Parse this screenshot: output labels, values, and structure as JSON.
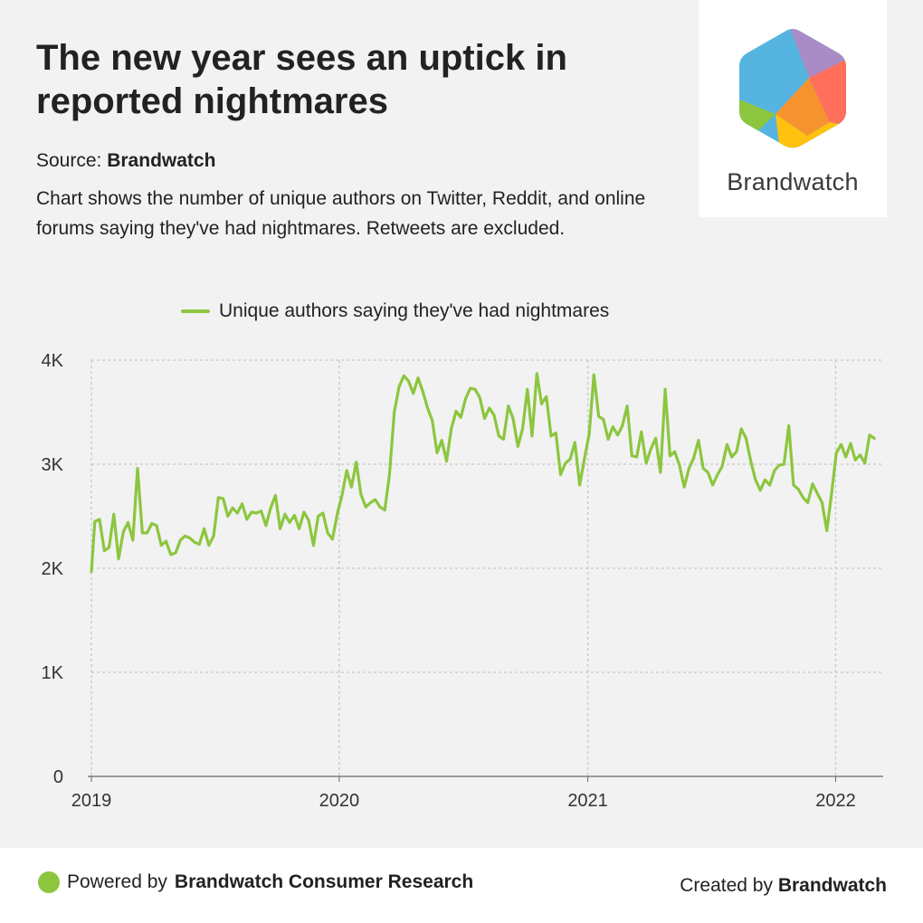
{
  "header": {
    "title": "The new year sees an uptick in reported nightmares",
    "source_prefix": "Source:",
    "source_name": "Brandwatch",
    "description": "Chart shows the number of unique authors on Twitter, Reddit, and online forums saying they've had nightmares. Retweets are excluded."
  },
  "logo": {
    "wordmark": "Brandwatch",
    "colors": [
      "#56b4e0",
      "#a98cc6",
      "#ff6f5b",
      "#f7932f",
      "#ffc20e",
      "#8cc63f"
    ]
  },
  "footer": {
    "powered_prefix": "Powered by",
    "powered_name": "Brandwatch Consumer Research",
    "created_prefix": "Created by",
    "created_name": "Brandwatch"
  },
  "colors": {
    "series": "#8cc63f",
    "grid": "#c8c8c8",
    "axis": "#666666"
  },
  "chart_data": {
    "type": "line",
    "title": "",
    "xlabel": "",
    "ylabel": "",
    "x_ticks": [
      "2019",
      "2020",
      "2021",
      "2022"
    ],
    "y_ticks": [
      "0",
      "1K",
      "2K",
      "3K",
      "4K"
    ],
    "ylim": [
      0,
      4000
    ],
    "xlim": [
      "2019-01-01",
      "2022-03-12"
    ],
    "grid": true,
    "legend": "top-center",
    "series": [
      {
        "name": "Unique authors saying they've had nightmares",
        "color": "#8cc63f",
        "points": [
          [
            "2019-01-01",
            1970
          ],
          [
            "2019-01-06",
            2450
          ],
          [
            "2019-01-13",
            2470
          ],
          [
            "2019-01-20",
            2170
          ],
          [
            "2019-01-27",
            2200
          ],
          [
            "2019-02-03",
            2520
          ],
          [
            "2019-02-10",
            2090
          ],
          [
            "2019-02-17",
            2350
          ],
          [
            "2019-02-24",
            2440
          ],
          [
            "2019-03-03",
            2270
          ],
          [
            "2019-03-10",
            2960
          ],
          [
            "2019-03-17",
            2340
          ],
          [
            "2019-03-24",
            2340
          ],
          [
            "2019-03-31",
            2430
          ],
          [
            "2019-04-07",
            2410
          ],
          [
            "2019-04-14",
            2220
          ],
          [
            "2019-04-21",
            2260
          ],
          [
            "2019-04-28",
            2130
          ],
          [
            "2019-05-05",
            2150
          ],
          [
            "2019-05-12",
            2270
          ],
          [
            "2019-05-19",
            2310
          ],
          [
            "2019-05-26",
            2290
          ],
          [
            "2019-06-02",
            2250
          ],
          [
            "2019-06-09",
            2230
          ],
          [
            "2019-06-16",
            2380
          ],
          [
            "2019-06-23",
            2220
          ],
          [
            "2019-06-30",
            2310
          ],
          [
            "2019-07-07",
            2680
          ],
          [
            "2019-07-14",
            2670
          ],
          [
            "2019-07-21",
            2500
          ],
          [
            "2019-07-28",
            2580
          ],
          [
            "2019-08-04",
            2530
          ],
          [
            "2019-08-11",
            2620
          ],
          [
            "2019-08-18",
            2470
          ],
          [
            "2019-08-25",
            2540
          ],
          [
            "2019-09-01",
            2530
          ],
          [
            "2019-09-08",
            2550
          ],
          [
            "2019-09-15",
            2410
          ],
          [
            "2019-09-22",
            2580
          ],
          [
            "2019-09-29",
            2700
          ],
          [
            "2019-10-06",
            2380
          ],
          [
            "2019-10-13",
            2520
          ],
          [
            "2019-10-20",
            2440
          ],
          [
            "2019-10-27",
            2510
          ],
          [
            "2019-11-03",
            2380
          ],
          [
            "2019-11-10",
            2540
          ],
          [
            "2019-11-17",
            2460
          ],
          [
            "2019-11-24",
            2220
          ],
          [
            "2019-12-01",
            2500
          ],
          [
            "2019-12-08",
            2530
          ],
          [
            "2019-12-15",
            2340
          ],
          [
            "2019-12-22",
            2280
          ],
          [
            "2019-12-29",
            2520
          ],
          [
            "2020-01-05",
            2700
          ],
          [
            "2020-01-12",
            2940
          ],
          [
            "2020-01-19",
            2780
          ],
          [
            "2020-01-26",
            3020
          ],
          [
            "2020-02-02",
            2710
          ],
          [
            "2020-02-09",
            2590
          ],
          [
            "2020-02-16",
            2630
          ],
          [
            "2020-02-23",
            2660
          ],
          [
            "2020-03-01",
            2590
          ],
          [
            "2020-03-08",
            2560
          ],
          [
            "2020-03-15",
            2900
          ],
          [
            "2020-03-22",
            3500
          ],
          [
            "2020-03-29",
            3740
          ],
          [
            "2020-04-05",
            3850
          ],
          [
            "2020-04-12",
            3800
          ],
          [
            "2020-04-19",
            3680
          ],
          [
            "2020-04-26",
            3830
          ],
          [
            "2020-05-03",
            3700
          ],
          [
            "2020-05-10",
            3540
          ],
          [
            "2020-05-17",
            3420
          ],
          [
            "2020-05-24",
            3110
          ],
          [
            "2020-05-31",
            3230
          ],
          [
            "2020-06-07",
            3030
          ],
          [
            "2020-06-14",
            3340
          ],
          [
            "2020-06-21",
            3510
          ],
          [
            "2020-06-28",
            3450
          ],
          [
            "2020-07-05",
            3630
          ],
          [
            "2020-07-12",
            3730
          ],
          [
            "2020-07-19",
            3720
          ],
          [
            "2020-07-26",
            3640
          ],
          [
            "2020-08-02",
            3440
          ],
          [
            "2020-08-09",
            3540
          ],
          [
            "2020-08-16",
            3470
          ],
          [
            "2020-08-23",
            3270
          ],
          [
            "2020-08-30",
            3240
          ],
          [
            "2020-09-06",
            3560
          ],
          [
            "2020-09-13",
            3440
          ],
          [
            "2020-09-20",
            3170
          ],
          [
            "2020-09-27",
            3340
          ],
          [
            "2020-10-04",
            3720
          ],
          [
            "2020-10-11",
            3270
          ],
          [
            "2020-10-18",
            3870
          ],
          [
            "2020-10-25",
            3580
          ],
          [
            "2020-11-01",
            3650
          ],
          [
            "2020-11-08",
            3270
          ],
          [
            "2020-11-15",
            3300
          ],
          [
            "2020-11-22",
            2900
          ],
          [
            "2020-11-29",
            3010
          ],
          [
            "2020-12-06",
            3050
          ],
          [
            "2020-12-13",
            3210
          ],
          [
            "2020-12-20",
            2800
          ],
          [
            "2020-12-27",
            3050
          ],
          [
            "2021-01-03",
            3290
          ],
          [
            "2021-01-10",
            3860
          ],
          [
            "2021-01-17",
            3460
          ],
          [
            "2021-01-24",
            3430
          ],
          [
            "2021-01-31",
            3240
          ],
          [
            "2021-02-07",
            3360
          ],
          [
            "2021-02-14",
            3280
          ],
          [
            "2021-02-21",
            3370
          ],
          [
            "2021-02-28",
            3560
          ],
          [
            "2021-03-07",
            3080
          ],
          [
            "2021-03-14",
            3070
          ],
          [
            "2021-03-21",
            3310
          ],
          [
            "2021-03-28",
            3010
          ],
          [
            "2021-04-04",
            3150
          ],
          [
            "2021-04-11",
            3250
          ],
          [
            "2021-04-18",
            2920
          ],
          [
            "2021-04-25",
            3720
          ],
          [
            "2021-05-02",
            3080
          ],
          [
            "2021-05-09",
            3120
          ],
          [
            "2021-05-16",
            2990
          ],
          [
            "2021-05-23",
            2780
          ],
          [
            "2021-05-30",
            2960
          ],
          [
            "2021-06-06",
            3060
          ],
          [
            "2021-06-13",
            3230
          ],
          [
            "2021-06-20",
            2960
          ],
          [
            "2021-06-27",
            2920
          ],
          [
            "2021-07-04",
            2800
          ],
          [
            "2021-07-11",
            2900
          ],
          [
            "2021-07-18",
            2980
          ],
          [
            "2021-07-25",
            3190
          ],
          [
            "2021-08-01",
            3070
          ],
          [
            "2021-08-08",
            3120
          ],
          [
            "2021-08-15",
            3340
          ],
          [
            "2021-08-22",
            3250
          ],
          [
            "2021-08-29",
            3030
          ],
          [
            "2021-09-05",
            2850
          ],
          [
            "2021-09-12",
            2750
          ],
          [
            "2021-09-19",
            2850
          ],
          [
            "2021-09-26",
            2800
          ],
          [
            "2021-10-03",
            2940
          ],
          [
            "2021-10-10",
            2990
          ],
          [
            "2021-10-17",
            3000
          ],
          [
            "2021-10-24",
            3370
          ],
          [
            "2021-10-31",
            2800
          ],
          [
            "2021-11-07",
            2760
          ],
          [
            "2021-11-14",
            2680
          ],
          [
            "2021-11-21",
            2630
          ],
          [
            "2021-11-28",
            2810
          ],
          [
            "2021-12-05",
            2720
          ],
          [
            "2021-12-12",
            2630
          ],
          [
            "2021-12-19",
            2360
          ],
          [
            "2021-12-26",
            2720
          ],
          [
            "2022-01-02",
            3110
          ],
          [
            "2022-01-09",
            3190
          ],
          [
            "2022-01-16",
            3070
          ],
          [
            "2022-01-23",
            3200
          ],
          [
            "2022-01-30",
            3040
          ],
          [
            "2022-02-06",
            3090
          ],
          [
            "2022-02-13",
            3010
          ],
          [
            "2022-02-20",
            3280
          ],
          [
            "2022-02-27",
            3250
          ]
        ]
      }
    ]
  }
}
